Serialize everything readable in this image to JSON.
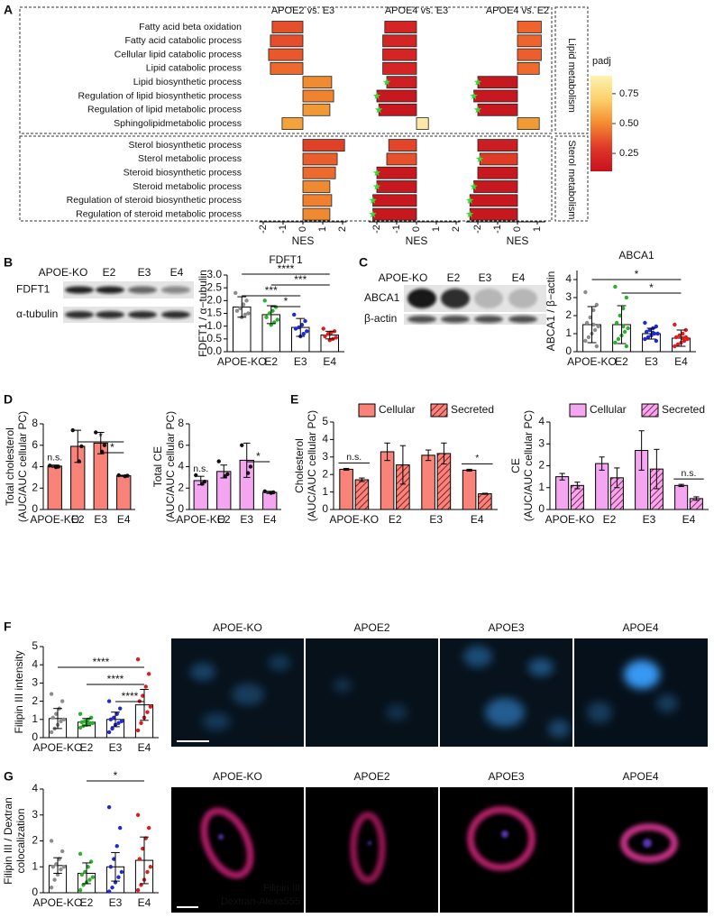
{
  "panels": [
    "A",
    "B",
    "C",
    "D",
    "E",
    "F",
    "G"
  ],
  "blots": [
    {
      "lanes": [
        "APOE-KO",
        "E2",
        "E3",
        "E4"
      ],
      "rows": [
        "FDFT1",
        "α-tubulin"
      ]
    },
    {
      "lanes": [
        "APOE-KO",
        "E2",
        "E3",
        "E4"
      ],
      "rows": [
        "ABCA1",
        "β-actin"
      ]
    }
  ],
  "micrographs": [
    {
      "titles": [
        "APOE-KO",
        "APOE2",
        "APOE3",
        "APOE4"
      ],
      "stains": [
        {
          "label": "Filipin III",
          "color": "#4a78ff"
        }
      ]
    },
    {
      "titles": [
        "APOE-KO",
        "APOE2",
        "APOE3",
        "APOE4"
      ],
      "stains": [
        {
          "label": "Filipin III",
          "color": "#4a78ff"
        },
        {
          "label": "Dextran-Alexa555",
          "color": "#ff2a2a"
        }
      ]
    }
  ],
  "chart_data": [
    {
      "type": "nes_bars",
      "xlabel": "NES",
      "groups": [
        {
          "label": "Lipid metabolism",
          "categories": [
            "Fatty acid beta oxidation",
            "Fatty acid catabolic process",
            "Cellular lipid catabolic process",
            "Lipid catabolic process",
            "Lipid biosynthetic process",
            "Regulation of lipid biosynthetic process",
            "Regulation of lipid metabolic process",
            "Sphingolipidmetabolic process"
          ]
        },
        {
          "label": "Sterol metabolism",
          "categories": [
            "Sterol biosynthetic process",
            "Sterol metabolic process",
            "Steroid biosynthetic process",
            "Steroid metabolic process",
            "Regulation of steroid biosynthetic process",
            "Regulation of steroid metabolic process"
          ]
        }
      ],
      "series": [
        {
          "name": "APOE2 vs. E3",
          "xlim": [
            -2.2,
            2.2
          ],
          "xticks": [
            -2,
            -1,
            0,
            1,
            2
          ],
          "values": [
            -1.55,
            -1.64,
            -1.73,
            -1.64,
            1.45,
            1.55,
            1.36,
            -1.05,
            2.1,
            1.73,
            1.64,
            1.36,
            1.45,
            1.36
          ],
          "colors": [
            "#e4502a",
            "#e64d2a",
            "#e8582b",
            "#ec6a2d",
            "#f08c2f",
            "#ef832e",
            "#f09a35",
            "#f3a33a",
            "#e04027",
            "#ea5e2c",
            "#ec6a2d",
            "#f08a30",
            "#ef802e",
            "#f08a30"
          ],
          "stars": [
            false,
            false,
            false,
            false,
            false,
            false,
            false,
            false,
            false,
            false,
            false,
            false,
            false,
            false
          ]
        },
        {
          "name": "APOE4 vs. E3",
          "xlim": [
            -2.4,
            2.2
          ],
          "xticks": [
            -2,
            -1,
            0,
            1,
            2
          ],
          "values": [
            -1.6,
            -1.7,
            -1.7,
            -1.7,
            -1.5,
            -2.0,
            -1.9,
            0.6,
            -1.4,
            -1.5,
            -2.0,
            -2.0,
            -2.2,
            -2.2
          ],
          "colors": [
            "#d42424",
            "#d42424",
            "#d42424",
            "#d42424",
            "#cf1f24",
            "#c8181f",
            "#c8181f",
            "#fde7a6",
            "#e2452a",
            "#e6502b",
            "#c8181f",
            "#c8181f",
            "#c8181f",
            "#c8181f"
          ],
          "stars": [
            false,
            false,
            false,
            false,
            true,
            true,
            true,
            false,
            false,
            false,
            true,
            true,
            true,
            true
          ]
        },
        {
          "name": "APOE4 vs. E2",
          "xlim": [
            -2.6,
            1.4
          ],
          "xticks": [
            -2,
            -1,
            0,
            1
          ],
          "values": [
            1.2,
            1.2,
            1.2,
            1.1,
            -2.0,
            -2.2,
            -2.0,
            1.1,
            -2.0,
            -1.9,
            -2.0,
            -2.2,
            -2.4,
            -2.4
          ],
          "colors": [
            "#ee642c",
            "#ee642c",
            "#ec5e2c",
            "#ee6a2d",
            "#c8181f",
            "#c8181f",
            "#c8181f",
            "#f29a33",
            "#cc1d22",
            "#de3a26",
            "#c8181f",
            "#c8181f",
            "#c8181f",
            "#c8181f"
          ],
          "stars": [
            false,
            false,
            false,
            false,
            true,
            true,
            true,
            false,
            false,
            true,
            false,
            true,
            true,
            true
          ]
        }
      ],
      "star_color": "#39d839",
      "colorbar": {
        "label": "padj",
        "lim": [
          0.1,
          0.9
        ],
        "ticks": [
          0.25,
          {
            "value": 0.5,
            "label": "0.50"
          },
          0.75
        ],
        "colors": [
          "#c8101e",
          "#e0382a",
          "#f48a30",
          "#fbd06a",
          "#fdf3b0"
        ]
      }
    },
    {
      "type": "bar",
      "title": "FDFT1",
      "ylabel": [
        "FDFT1 / α−tubulin"
      ],
      "categories": [
        "APOE-KO",
        "E2",
        "E3",
        "E4"
      ],
      "values": [
        1.75,
        1.45,
        0.95,
        0.65
      ],
      "errors": [
        0.4,
        0.35,
        0.35,
        0.15
      ],
      "color": "#ffffff",
      "point_colors": [
        "#8c8c8c",
        "#2bb02b",
        "#1f2ad0",
        "#e01b1b"
      ],
      "points": [
        [
          2.3,
          2.0,
          1.85,
          1.7,
          1.6,
          1.5,
          1.45,
          1.35
        ],
        [
          2.0,
          1.75,
          1.6,
          1.5,
          1.35,
          1.25,
          1.15,
          1.05
        ],
        [
          1.45,
          1.2,
          1.05,
          0.95,
          0.9,
          0.8,
          0.7,
          0.6
        ],
        [
          0.9,
          0.8,
          0.75,
          0.7,
          0.6,
          0.55,
          0.5,
          0.45
        ]
      ],
      "ylim": [
        0,
        3
      ],
      "yticks": [
        {
          "value": 0,
          "label": "0.0"
        },
        0.5,
        {
          "value": 1,
          "label": "1.0"
        },
        1.5,
        {
          "value": 2,
          "label": "2.0"
        },
        2.5,
        {
          "value": 3,
          "label": "3.0"
        }
      ],
      "brackets": [
        {
          "from": 0,
          "to": 3,
          "label": "****"
        },
        {
          "from": 1,
          "to": 3,
          "label": "***"
        },
        {
          "from": 0,
          "to": 2,
          "label": "***"
        },
        {
          "from": 1,
          "to": 2,
          "label": "*"
        }
      ]
    },
    {
      "type": "bar",
      "title": "ABCA1",
      "ylabel": [
        "ABCA1 / β−actin"
      ],
      "categories": [
        "APOE-KO",
        "E2",
        "E3",
        "E4"
      ],
      "values": [
        1.5,
        1.5,
        1.0,
        0.75
      ],
      "errors": [
        1.0,
        1.05,
        0.3,
        0.45
      ],
      "color": "#ffffff",
      "point_colors": [
        "#8c8c8c",
        "#2bb02b",
        "#1f2ad0",
        "#e01b1b"
      ],
      "points": [
        [
          3.3,
          2.6,
          2.3,
          1.9,
          1.6,
          1.4,
          1.2,
          1.0,
          0.8,
          0.6,
          0.3,
          1.5
        ],
        [
          3.6,
          3.0,
          2.4,
          2.0,
          1.6,
          1.3,
          1.1,
          0.9,
          0.7,
          0.5,
          0.3,
          1.4
        ],
        [
          1.6,
          1.4,
          1.3,
          1.2,
          1.1,
          1.0,
          1.0,
          0.9,
          0.8,
          0.7,
          0.6,
          1.05
        ],
        [
          1.5,
          1.2,
          1.0,
          0.9,
          0.8,
          0.7,
          0.6,
          0.5,
          0.4,
          0.3,
          0.8,
          0.75
        ]
      ],
      "ylim": [
        0,
        4.5
      ],
      "yticks": [
        0,
        1,
        2,
        3,
        4
      ],
      "brackets": [
        {
          "from": 0,
          "to": 3,
          "label": "*"
        },
        {
          "from": 1,
          "to": 3,
          "label": "*"
        }
      ]
    },
    {
      "type": "bar",
      "ylabel": [
        "Total cholesterol",
        "(AUC/AUC cellular PC)"
      ],
      "categories": [
        "APOE-KO",
        "E2",
        "E3",
        "E4"
      ],
      "values": [
        4.05,
        5.9,
        6.2,
        3.15
      ],
      "errors": [
        0.1,
        1.5,
        1.0,
        0.05
      ],
      "color": "#f98379",
      "points": [
        [
          4.1,
          4.0,
          3.95
        ],
        [
          7.4,
          5.9,
          4.5
        ],
        [
          7.2,
          6.0,
          5.4
        ],
        [
          3.2,
          3.15,
          3.1
        ]
      ],
      "ylim": [
        0,
        8
      ],
      "yticks": [
        0,
        2,
        4,
        6,
        8
      ],
      "brackets": [
        {
          "from": 1,
          "to": 3,
          "label": "*"
        },
        {
          "from": 2,
          "to": 3,
          "label": "*"
        }
      ],
      "annotations": [
        {
          "category": 0,
          "label": "n.s."
        }
      ]
    },
    {
      "type": "bar",
      "ylabel": [
        "Total CE",
        "(AUC/AUC cellular PC)"
      ],
      "categories": [
        "APOE-KO",
        "E2",
        "E3",
        "E4"
      ],
      "values": [
        2.7,
        3.55,
        4.6,
        1.6
      ],
      "errors": [
        0.4,
        0.6,
        1.6,
        0.1
      ],
      "color": "#f4a6f0",
      "points": [
        [
          3.2,
          2.6,
          2.4
        ],
        [
          4.5,
          3.3,
          3.1
        ],
        [
          6.0,
          4.0,
          3.4
        ],
        [
          1.7,
          1.6,
          1.55
        ]
      ],
      "ylim": [
        0,
        8
      ],
      "yticks": [
        0,
        2,
        4,
        6,
        8
      ],
      "brackets": [
        {
          "from": 2,
          "to": 3,
          "label": "*"
        }
      ],
      "annotations": [
        {
          "category": 0,
          "label": "n.s."
        }
      ]
    },
    {
      "type": "grouped_bar",
      "ylabel": [
        "Cholesterol",
        "(AUC/AUC cellular PC)"
      ],
      "categories": [
        "APOE-KO",
        "E2",
        "E3",
        "E4"
      ],
      "series": [
        {
          "name": "Cellular",
          "color": "#f98379",
          "hatch": false,
          "values": [
            2.3,
            3.3,
            3.1,
            2.25
          ],
          "errors": [
            0.05,
            0.5,
            0.3,
            0.05
          ]
        },
        {
          "name": "Secreted",
          "color": "#f98379",
          "hatch": true,
          "values": [
            1.7,
            2.55,
            3.2,
            0.9
          ],
          "errors": [
            0.1,
            1.1,
            0.6,
            0.03
          ]
        }
      ],
      "ylim": [
        0,
        5
      ],
      "yticks": [
        0,
        1,
        2,
        3,
        4,
        5
      ],
      "annotations": [
        {
          "category": 0,
          "label": "n.s."
        },
        {
          "category": 3,
          "label": "*"
        }
      ]
    },
    {
      "type": "grouped_bar",
      "ylabel": [
        "CE",
        "(AUC/AUC cellular PC)"
      ],
      "categories": [
        "APOE-KO",
        "E2",
        "E3",
        "E4"
      ],
      "series": [
        {
          "name": "Cellular",
          "color": "#f4a6f0",
          "hatch": false,
          "values": [
            1.5,
            2.1,
            2.7,
            1.1
          ],
          "errors": [
            0.15,
            0.3,
            0.9,
            0.05
          ]
        },
        {
          "name": "Secreted",
          "color": "#f4a6f0",
          "hatch": true,
          "values": [
            1.1,
            1.45,
            1.85,
            0.5
          ],
          "errors": [
            0.15,
            0.45,
            0.9,
            0.08
          ]
        }
      ],
      "ylim": [
        0,
        4
      ],
      "yticks": [
        0,
        1,
        2,
        3,
        4
      ],
      "annotations": [
        {
          "category": 3,
          "label": "n.s."
        }
      ]
    },
    {
      "type": "bar",
      "ylabel": [
        "Filipin III intensity"
      ],
      "categories": [
        "APOE-KO",
        "E2",
        "E3",
        "E4"
      ],
      "values": [
        1.05,
        0.85,
        1.0,
        1.8
      ],
      "errors": [
        0.55,
        0.2,
        0.4,
        0.85
      ],
      "color": "#ffffff",
      "point_colors": [
        "#8c8c8c",
        "#2bb02b",
        "#1f2ad0",
        "#e01b1b"
      ],
      "points": [
        [
          2.4,
          2.0,
          1.6,
          1.3,
          1.1,
          1.0,
          0.9,
          0.7,
          0.5,
          0.3
        ],
        [
          1.3,
          1.1,
          1.0,
          0.9,
          0.85,
          0.8,
          0.75,
          0.7,
          0.65,
          0.55
        ],
        [
          2.0,
          1.6,
          1.3,
          1.1,
          1.0,
          0.9,
          0.8,
          0.7,
          0.5,
          0.3
        ],
        [
          4.3,
          3.5,
          2.8,
          2.3,
          2.0,
          1.7,
          1.4,
          1.1,
          0.8,
          0.4
        ]
      ],
      "ylim": [
        0,
        5
      ],
      "yticks": [
        0,
        1,
        2,
        3,
        4,
        5
      ],
      "brackets": [
        {
          "from": 0,
          "to": 3,
          "label": "****"
        },
        {
          "from": 1,
          "to": 3,
          "label": "****"
        },
        {
          "from": 2,
          "to": 3,
          "label": "****"
        }
      ]
    },
    {
      "type": "bar",
      "ylabel": [
        "Filipin III / Dextran",
        "colocalization"
      ],
      "categories": [
        "APOE-KO",
        "E2",
        "E3",
        "E4"
      ],
      "values": [
        1.05,
        0.75,
        1.0,
        1.25
      ],
      "errors": [
        0.3,
        0.4,
        0.55,
        0.9
      ],
      "color": "#ffffff",
      "point_colors": [
        "#8c8c8c",
        "#2bb02b",
        "#1f2ad0",
        "#e01b1b"
      ],
      "points": [
        [
          2.0,
          1.6,
          1.3,
          1.1,
          1.0,
          1.0,
          0.9,
          0.7,
          0.5,
          0.2
        ],
        [
          1.5,
          1.2,
          1.0,
          0.8,
          0.7,
          0.6,
          0.5,
          0.4,
          0.3,
          0.1
        ],
        [
          3.3,
          2.5,
          1.8,
          1.3,
          1.0,
          0.8,
          0.6,
          0.4,
          0.2,
          0.05
        ],
        [
          3.0,
          2.5,
          2.1,
          1.7,
          1.3,
          1.0,
          0.8,
          0.5,
          0.3,
          0.1
        ]
      ],
      "ylim": [
        0,
        4
      ],
      "yticks": [
        0,
        1,
        2,
        3,
        4
      ],
      "brackets": [
        {
          "from": 1,
          "to": 3,
          "label": "*"
        }
      ]
    }
  ]
}
